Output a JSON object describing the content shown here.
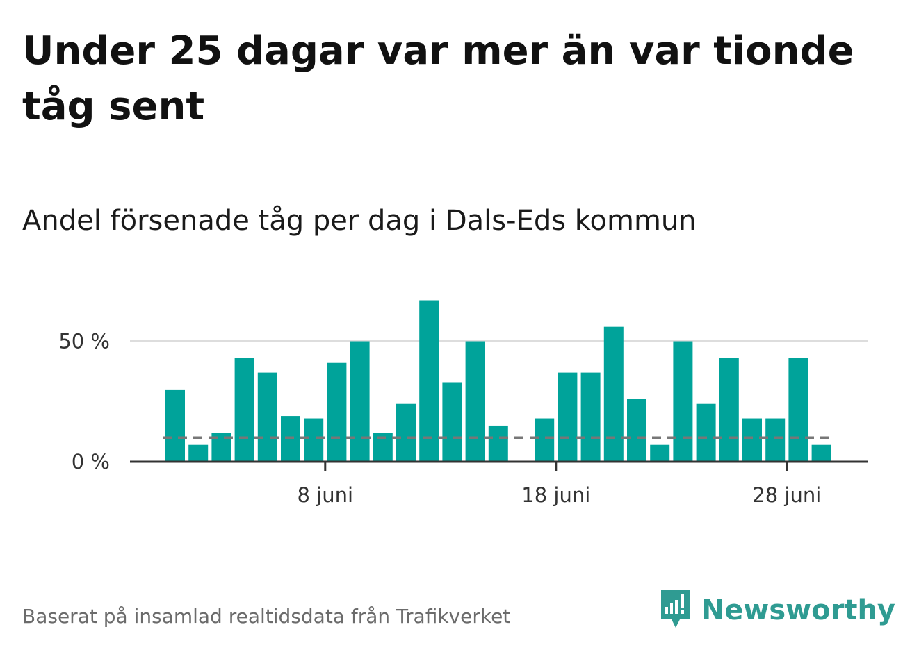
{
  "title": "Under 25 dagar var mer än var tionde tåg sent",
  "subtitle": "Andel försenade tåg per dag i Dals-Eds kommun",
  "footer": "Baserat på insamlad realtidsdata från Trafikverket",
  "brand": {
    "name": "Newsworthy",
    "icon": "bar-chart-speech-bubble-icon"
  },
  "colors": {
    "bar": "#00a39a",
    "reference_line": "#777777",
    "grid": "#dddddd",
    "axis": "#333333",
    "brand": "#2f9b92"
  },
  "chart_data": {
    "type": "bar",
    "title": "Andel försenade tåg per dag i Dals-Eds kommun",
    "xlabel": "",
    "ylabel": "",
    "x_start_day": 1,
    "categories": [
      "1 juni",
      "2 juni",
      "3 juni",
      "4 juni",
      "5 juni",
      "6 juni",
      "7 juni",
      "8 juni",
      "9 juni",
      "10 juni",
      "11 juni",
      "12 juni",
      "13 juni",
      "14 juni",
      "15 juni",
      "16 juni",
      "17 juni",
      "18 juni",
      "19 juni",
      "20 juni",
      "21 juni",
      "22 juni",
      "23 juni",
      "24 juni",
      "25 juni",
      "26 juni",
      "27 juni",
      "28 juni",
      "29 juni",
      "30 juni"
    ],
    "values": [
      30,
      7,
      12,
      43,
      37,
      19,
      18,
      41,
      50,
      12,
      24,
      67,
      33,
      50,
      15,
      null,
      18,
      37,
      37,
      56,
      26,
      7,
      50,
      24,
      43,
      18,
      18,
      43,
      7,
      null
    ],
    "x_ticks": [
      {
        "day": 8,
        "label": "8 juni"
      },
      {
        "day": 18,
        "label": "18 juni"
      },
      {
        "day": 28,
        "label": "28 juni"
      }
    ],
    "y_ticks": [
      {
        "value": 0,
        "label": "0 %"
      },
      {
        "value": 50,
        "label": "50 %"
      }
    ],
    "ylim": [
      0,
      70
    ],
    "reference_line": {
      "value": 10,
      "style": "dashed"
    },
    "grid": true,
    "legend": "none"
  }
}
